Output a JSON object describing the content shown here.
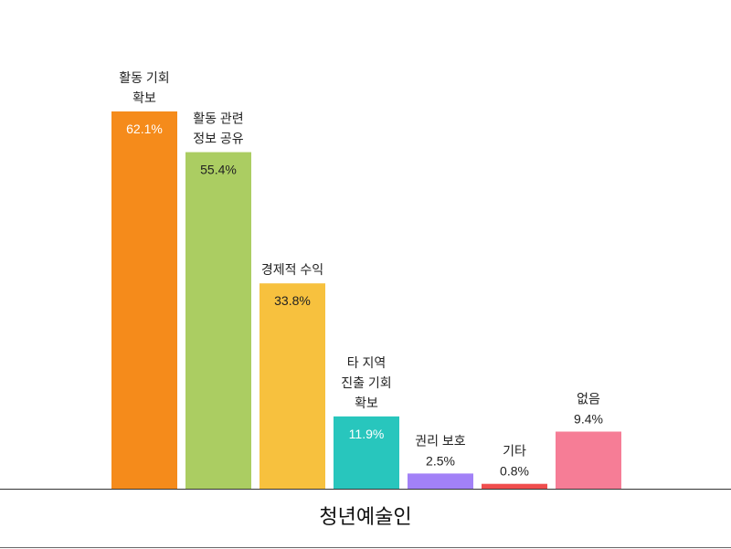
{
  "chart_data": {
    "type": "bar",
    "xlabel": "청년예술인",
    "ylim": [
      0,
      62.1
    ],
    "grid": false,
    "categories": [
      [
        "활동 기회",
        "확보"
      ],
      [
        "활동 관련",
        "정보 공유"
      ],
      [
        "경제적 수익"
      ],
      [
        "타 지역",
        "진출 기회",
        "확보"
      ],
      [
        "권리 보호"
      ],
      [
        "기타"
      ],
      [
        "없음"
      ]
    ],
    "values": [
      62.1,
      55.4,
      33.8,
      11.9,
      2.5,
      0.8,
      9.4
    ],
    "value_labels": [
      "62.1%",
      "55.4%",
      "33.8%",
      "11.9%",
      "2.5%",
      "0.8%",
      "9.4%"
    ],
    "colors": [
      "#f58b1b",
      "#abcd62",
      "#f7c13e",
      "#28c6bd",
      "#a281f7",
      "#f04e4e",
      "#f67d96"
    ],
    "label_colors": [
      "#ffffff",
      "#222222",
      "#222222",
      "#ffffff",
      "#222222",
      "#222222",
      "#222222"
    ],
    "label_inside": [
      true,
      true,
      true,
      true,
      false,
      false,
      false
    ]
  }
}
